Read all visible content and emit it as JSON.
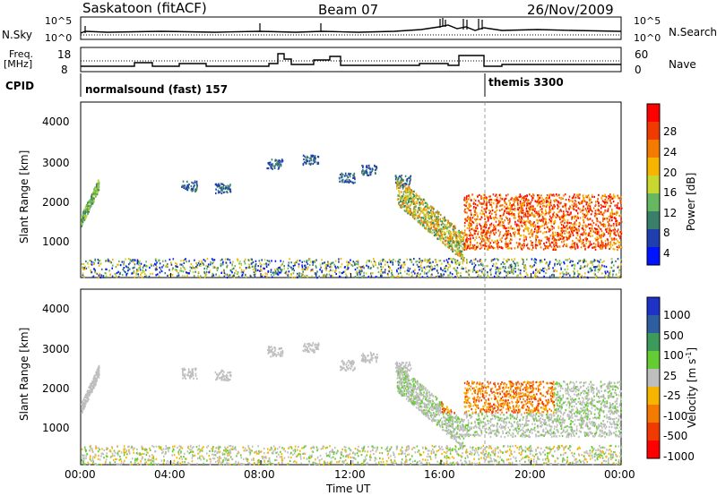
{
  "header": {
    "station": "Saskatoon (fitACF)",
    "beam": "Beam 07",
    "date": "26/Nov/2009"
  },
  "nsky_panel": {
    "left_label": "N.Sky",
    "right_label": "N.Search",
    "left_ticks": [
      "10^5",
      "10^0"
    ],
    "right_ticks": [
      "10^5",
      "10^0"
    ]
  },
  "freq_panel": {
    "left_label_line1": "Freq.",
    "left_label_line2": "[MHz]",
    "right_label": "Nave",
    "left_ticks": [
      "18",
      "8"
    ],
    "right_ticks": [
      "60",
      "0"
    ]
  },
  "cpid_panel": {
    "label": "CPID",
    "programs": [
      {
        "name": "normalsound (fast) 157",
        "start_hour": 0
      },
      {
        "name": "themis 3300",
        "start_hour": 18
      }
    ]
  },
  "chart_data": [
    {
      "type": "heatmap",
      "title": "",
      "ylabel": "Slant Range [km]",
      "ylim": [
        180,
        4600
      ],
      "yticks": [
        "1000",
        "2000",
        "3000",
        "4000"
      ],
      "xlim": [
        0,
        24
      ],
      "colorbar": {
        "label": "Power [dB]",
        "ticks": [
          "4",
          "8",
          "12",
          "16",
          "20",
          "24",
          "28"
        ],
        "colors": [
          "#0014ff",
          "#1f3fae",
          "#3a7f6a",
          "#66b860",
          "#c8d830",
          "#f7b500",
          "#f57a00",
          "#f03a00",
          "#ff0000"
        ]
      }
    },
    {
      "type": "heatmap",
      "title": "",
      "ylabel": "Slant Range [km]",
      "ylim": [
        180,
        4600
      ],
      "yticks": [
        "1000",
        "2000",
        "3000",
        "4000"
      ],
      "xlim": [
        0,
        24
      ],
      "xlabel": "Time UT",
      "xticks": [
        "00:00",
        "04:00",
        "08:00",
        "12:00",
        "16:00",
        "20:00",
        "00:00"
      ],
      "colorbar": {
        "label": "Velocity",
        "unit_base": "[m s",
        "unit_sup": "-1",
        "unit_end": "]",
        "ticks": [
          "1000",
          "500",
          "100",
          "25",
          "-25",
          "-100",
          "-500",
          "-1000"
        ],
        "colors": [
          "#1e32c8",
          "#2e5ea0",
          "#3c9a5a",
          "#66cc33",
          "#bebebe",
          "#f7b500",
          "#f57a00",
          "#f03a00",
          "#ff0000"
        ]
      }
    }
  ]
}
